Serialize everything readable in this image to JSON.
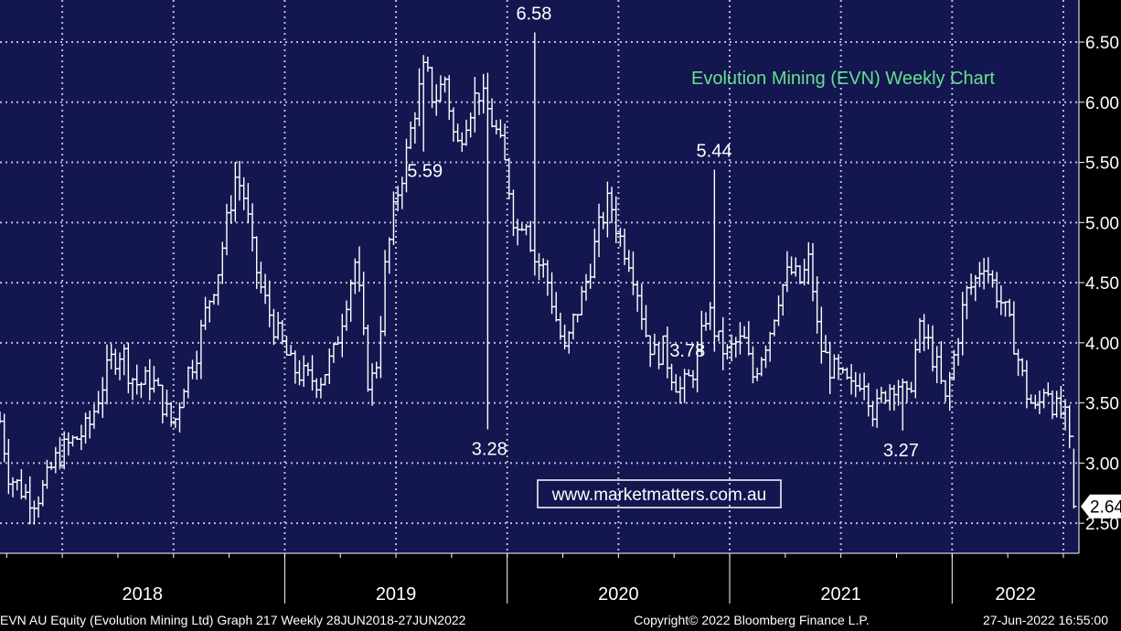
{
  "chart_data": {
    "type": "ohlc",
    "title": "Evolution Mining (EVN) Weekly Chart",
    "y_ticks": [
      "6.50",
      "6.00",
      "5.50",
      "5.00",
      "4.50",
      "4.00",
      "3.50",
      "3.00",
      "2.50"
    ],
    "y_tick_values": [
      6.5,
      6.0,
      5.5,
      5.0,
      4.5,
      4.0,
      3.5,
      3.0,
      2.5
    ],
    "ylim": [
      2.25,
      6.85
    ],
    "years": [
      "2018",
      "2019",
      "2020",
      "2021",
      "2022"
    ],
    "year_boundaries": [
      2019,
      2020,
      2021,
      2022
    ],
    "xlim": [
      2017.72,
      2022.57
    ],
    "grid": true,
    "last_price": "2.64",
    "last_value": 2.64,
    "annotations": [
      {
        "text": "6.58",
        "x": 2020.12,
        "y": 6.58
      },
      {
        "text": "5.59",
        "x": 2019.63,
        "y": 5.59
      },
      {
        "text": "5.44",
        "x": 2020.93,
        "y": 5.44
      },
      {
        "text": "3.78",
        "x": 2020.81,
        "y": 3.78
      },
      {
        "text": "3.28",
        "x": 2019.92,
        "y": 3.28
      },
      {
        "text": "3.27",
        "x": 2021.77,
        "y": 3.27
      }
    ],
    "close_path": [
      [
        2017.72,
        3.35
      ],
      [
        2017.76,
        2.9
      ],
      [
        2017.83,
        2.75
      ],
      [
        2017.88,
        2.7
      ],
      [
        2017.92,
        2.8
      ],
      [
        2017.96,
        3.0
      ],
      [
        2018.0,
        3.1
      ],
      [
        2018.06,
        3.2
      ],
      [
        2018.12,
        3.3
      ],
      [
        2018.17,
        3.6
      ],
      [
        2018.22,
        3.85
      ],
      [
        2018.27,
        3.95
      ],
      [
        2018.3,
        3.75
      ],
      [
        2018.34,
        3.65
      ],
      [
        2018.4,
        3.7
      ],
      [
        2018.45,
        3.5
      ],
      [
        2018.5,
        3.3
      ],
      [
        2018.55,
        3.7
      ],
      [
        2018.6,
        3.9
      ],
      [
        2018.65,
        4.3
      ],
      [
        2018.7,
        4.6
      ],
      [
        2018.74,
        5.0
      ],
      [
        2018.78,
        5.4
      ],
      [
        2018.82,
        5.2
      ],
      [
        2018.86,
        4.7
      ],
      [
        2018.9,
        4.4
      ],
      [
        2018.96,
        4.1
      ],
      [
        2019.03,
        3.8
      ],
      [
        2019.1,
        3.7
      ],
      [
        2019.16,
        3.7
      ],
      [
        2019.22,
        3.9
      ],
      [
        2019.28,
        4.4
      ],
      [
        2019.32,
        4.7
      ],
      [
        2019.35,
        4.1
      ],
      [
        2019.38,
        3.6
      ],
      [
        2019.42,
        3.9
      ],
      [
        2019.45,
        4.6
      ],
      [
        2019.5,
        5.2
      ],
      [
        2019.54,
        5.5
      ],
      [
        2019.58,
        5.9
      ],
      [
        2019.63,
        6.3
      ],
      [
        2019.67,
        6.0
      ],
      [
        2019.72,
        6.2
      ],
      [
        2019.77,
        5.6
      ],
      [
        2019.82,
        5.9
      ],
      [
        2019.87,
        6.1
      ],
      [
        2019.92,
        5.9
      ],
      [
        2019.96,
        5.7
      ],
      [
        2020.0,
        5.4
      ],
      [
        2020.04,
        4.9
      ],
      [
        2020.08,
        5.1
      ],
      [
        2020.12,
        4.7
      ],
      [
        2020.17,
        4.6
      ],
      [
        2020.22,
        4.2
      ],
      [
        2020.26,
        3.9
      ],
      [
        2020.3,
        4.2
      ],
      [
        2020.34,
        4.4
      ],
      [
        2020.38,
        4.7
      ],
      [
        2020.42,
        5.0
      ],
      [
        2020.46,
        5.2
      ],
      [
        2020.5,
        4.9
      ],
      [
        2020.55,
        4.7
      ],
      [
        2020.58,
        4.5
      ],
      [
        2020.62,
        4.1
      ],
      [
        2020.66,
        3.9
      ],
      [
        2020.7,
        3.95
      ],
      [
        2020.74,
        3.75
      ],
      [
        2020.78,
        3.6
      ],
      [
        2020.82,
        3.7
      ],
      [
        2020.86,
        3.9
      ],
      [
        2020.9,
        4.3
      ],
      [
        2020.95,
        4.0
      ],
      [
        2020.99,
        3.9
      ],
      [
        2021.03,
        4.0
      ],
      [
        2021.07,
        4.0
      ],
      [
        2021.1,
        3.7
      ],
      [
        2021.14,
        3.9
      ],
      [
        2021.18,
        4.1
      ],
      [
        2021.22,
        4.4
      ],
      [
        2021.27,
        4.6
      ],
      [
        2021.32,
        4.5
      ],
      [
        2021.36,
        4.7
      ],
      [
        2021.4,
        4.0
      ],
      [
        2021.45,
        3.8
      ],
      [
        2021.5,
        3.7
      ],
      [
        2021.55,
        3.6
      ],
      [
        2021.6,
        3.75
      ],
      [
        2021.65,
        3.4
      ],
      [
        2021.7,
        3.6
      ],
      [
        2021.75,
        3.7
      ],
      [
        2021.8,
        3.5
      ],
      [
        2021.85,
        4.1
      ],
      [
        2021.89,
        4.0
      ],
      [
        2021.93,
        3.8
      ],
      [
        2021.97,
        3.5
      ],
      [
        2022.01,
        3.9
      ],
      [
        2022.06,
        4.4
      ],
      [
        2022.1,
        4.5
      ],
      [
        2022.14,
        4.7
      ],
      [
        2022.18,
        4.5
      ],
      [
        2022.23,
        4.3
      ],
      [
        2022.28,
        4.0
      ],
      [
        2022.33,
        3.6
      ],
      [
        2022.38,
        3.4
      ],
      [
        2022.42,
        3.7
      ],
      [
        2022.46,
        3.45
      ],
      [
        2022.5,
        3.4
      ],
      [
        2022.52,
        3.3
      ],
      [
        2022.55,
        2.64
      ]
    ]
  },
  "watermark": "www.marketmatters.com.au",
  "footer": {
    "left": "EVN AU Equity (Evolution Mining Ltd) Graph 217  Weekly 28JUN2018-27JUN2022",
    "center": "Copyright© 2022 Bloomberg Finance L.P.",
    "right": "27-Jun-2022 16:55:00"
  },
  "colors": {
    "background": "#000000",
    "plot_area": "#13164f",
    "grid": "#b9bcd3",
    "price_bars": "#ffffff",
    "title": "#66e08c",
    "watermark": "#ffffff"
  }
}
